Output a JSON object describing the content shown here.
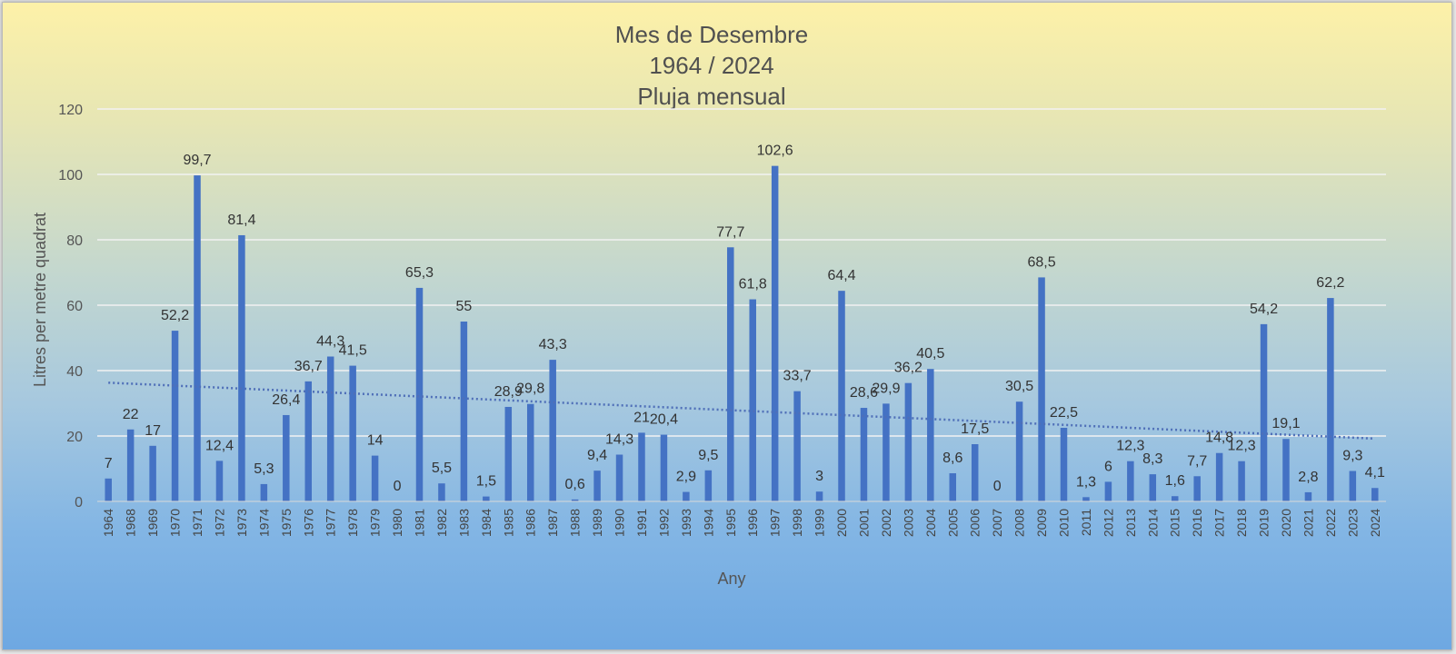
{
  "chart_data": {
    "type": "bar",
    "title": [
      "Mes de Desembre",
      "1964 / 2024",
      "Pluja mensual"
    ],
    "xlabel": "Any",
    "ylabel": "Litres per metre quadrat",
    "ylim": [
      0,
      120
    ],
    "yticks": [
      0,
      20,
      40,
      60,
      80,
      100,
      120
    ],
    "grid": true,
    "legend": "none",
    "trendline": {
      "type": "linear",
      "style": "dotted",
      "start": 36.3,
      "end": 19.2
    },
    "categories": [
      "1964",
      "1968",
      "1969",
      "1970",
      "1971",
      "1972",
      "1973",
      "1974",
      "1975",
      "1976",
      "1977",
      "1978",
      "1979",
      "1980",
      "1981",
      "1982",
      "1983",
      "1984",
      "1985",
      "1986",
      "1987",
      "1988",
      "1989",
      "1990",
      "1991",
      "1992",
      "1993",
      "1994",
      "1995",
      "1996",
      "1997",
      "1998",
      "1999",
      "2000",
      "2001",
      "2002",
      "2003",
      "2004",
      "2005",
      "2006",
      "2007",
      "2008",
      "2009",
      "2010",
      "2011",
      "2012",
      "2013",
      "2014",
      "2015",
      "2016",
      "2017",
      "2018",
      "2019",
      "2020",
      "2021",
      "2022",
      "2023",
      "2024"
    ],
    "values": [
      7,
      22,
      17,
      52.2,
      99.7,
      12.4,
      81.4,
      5.3,
      26.4,
      36.7,
      44.3,
      41.5,
      14,
      0,
      65.3,
      5.5,
      55,
      1.5,
      28.9,
      29.8,
      43.3,
      0.6,
      9.4,
      14.3,
      21,
      20.4,
      2.9,
      9.5,
      77.7,
      61.8,
      102.6,
      33.7,
      3,
      64.4,
      28.6,
      29.9,
      36.2,
      40.5,
      8.6,
      17.5,
      0,
      30.5,
      68.5,
      22.5,
      1.3,
      6,
      12.3,
      8.3,
      1.6,
      7.7,
      14.8,
      12.3,
      54.2,
      19.1,
      2.8,
      62.2,
      9.3,
      4.1
    ],
    "data_labels": [
      "7",
      "22",
      "17",
      "52,2",
      "99,7",
      "12,4",
      "81,4",
      "5,3",
      "26,4",
      "36,7",
      "44,3",
      "41,5",
      "14",
      "0",
      "65,3",
      "5,5",
      "55",
      "1,5",
      "28,9",
      "29,8",
      "43,3",
      "0,6",
      "9,4",
      "14,3",
      "21",
      "20,4",
      "2,9",
      "9,5",
      "77,7",
      "61,8",
      "102,6",
      "33,7",
      "3",
      "64,4",
      "28,6",
      "29,9",
      "36,2",
      "40,5",
      "8,6",
      "17,5",
      "0",
      "30,5",
      "68,5",
      "22,5",
      "1,3",
      "6",
      "12,3",
      "8,3",
      "1,6",
      "7,7",
      "14,8",
      "12,3",
      "54,2",
      "19,1",
      "2,8",
      "62,2",
      "9,3",
      "4,1"
    ],
    "colors": {
      "bar": "#4472c4",
      "grid": "#f2f2f2",
      "trend": "#4f6fb8"
    }
  }
}
